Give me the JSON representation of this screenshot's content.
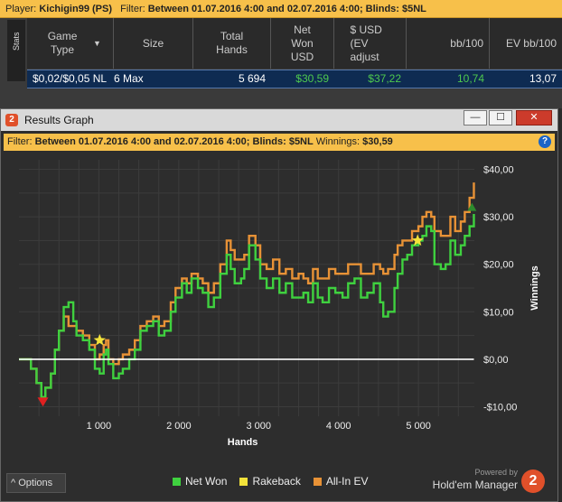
{
  "topbar": {
    "player_label": "Player:",
    "player": "Kichigin99 (PS)",
    "filter_label": "Filter:",
    "filter": "Between 01.07.2016 4:00 and 02.07.2016 4:00; Blinds: $5NL"
  },
  "stats": {
    "tab_label": "Stats",
    "columns": [
      "Game Type",
      "Size",
      "Total Hands",
      "Net Won USD",
      "$ USD (EV adjust",
      "bb/100",
      "EV bb/100"
    ],
    "row": {
      "game_type": "$0,02/$0,05 NL",
      "size": "6 Max",
      "total_hands": "5 694",
      "net_won": "$30,59",
      "ev_adjusted": "$37,22",
      "bb100": "10,74",
      "ev_bb100": "13,07"
    }
  },
  "window": {
    "title": "Results Graph",
    "app_icon": "2",
    "btn_minimize": "—",
    "btn_maximize": "☐",
    "btn_close": "✕"
  },
  "graph_filter": {
    "label": "Filter:",
    "text": "Between 01.07.2016 4:00 and 02.07.2016 4:00; Blinds: $5NL",
    "winnings_label": "Winnings:",
    "winnings": "$30,59",
    "help": "?"
  },
  "chart_data": {
    "type": "line",
    "xlabel": "Hands",
    "ylabel": "Winnings",
    "xlim": [
      0,
      5700
    ],
    "ylim": [
      -12,
      42
    ],
    "x_ticks": [
      1000,
      2000,
      3000,
      4000,
      5000
    ],
    "x_tick_labels": [
      "1 000",
      "2 000",
      "3 000",
      "4 000",
      "5 000"
    ],
    "y_ticks": [
      -10,
      0,
      10,
      20,
      30,
      40
    ],
    "y_tick_labels": [
      "-$10,00",
      "$0,00",
      "$10,00",
      "$20,00",
      "$30,00",
      "$40,00"
    ],
    "grid": true,
    "series": [
      {
        "name": "Net Won",
        "color": "#3fd13f",
        "x": [
          0,
          150,
          220,
          280,
          330,
          400,
          450,
          500,
          560,
          620,
          680,
          720,
          800,
          880,
          950,
          1010,
          1060,
          1090,
          1120,
          1180,
          1250,
          1300,
          1380,
          1450,
          1520,
          1600,
          1680,
          1750,
          1820,
          1900,
          1960,
          2040,
          2100,
          2160,
          2240,
          2300,
          2370,
          2440,
          2520,
          2600,
          2650,
          2700,
          2780,
          2820,
          2880,
          2960,
          3020,
          3100,
          3180,
          3260,
          3340,
          3420,
          3500,
          3560,
          3620,
          3680,
          3740,
          3800,
          3880,
          3960,
          4050,
          4120,
          4200,
          4280,
          4360,
          4440,
          4520,
          4560,
          4620,
          4700,
          4740,
          4800,
          4860,
          4920,
          5000,
          5050,
          5100,
          5160,
          5200,
          5280,
          5340,
          5400,
          5460,
          5530,
          5580,
          5640,
          5694
        ],
        "y": [
          0,
          -2,
          -5,
          -8,
          -6,
          -3,
          2,
          6,
          11,
          12,
          8,
          5,
          4,
          2,
          -2,
          -3,
          1,
          2,
          -1,
          -4,
          -3,
          -2,
          0,
          2,
          6,
          7,
          8,
          5,
          6,
          10,
          13,
          16,
          14,
          17,
          15,
          14,
          11,
          13,
          18,
          22,
          19,
          16,
          17,
          19,
          24,
          21,
          17,
          15,
          17,
          14,
          16,
          13,
          13,
          14,
          12,
          16,
          13,
          12,
          15,
          14,
          13,
          16,
          17,
          13,
          14,
          16,
          12,
          9,
          10,
          15,
          18,
          21,
          22,
          24,
          25,
          26,
          28,
          27,
          20,
          19,
          20,
          25,
          22,
          24,
          26,
          28,
          30.59
        ]
      },
      {
        "name": "All-In EV",
        "color": "#e89236",
        "x": [
          0,
          150,
          220,
          280,
          330,
          400,
          450,
          500,
          560,
          620,
          680,
          720,
          800,
          880,
          950,
          1010,
          1060,
          1090,
          1120,
          1180,
          1250,
          1300,
          1380,
          1450,
          1520,
          1600,
          1680,
          1750,
          1820,
          1900,
          1960,
          2040,
          2100,
          2160,
          2240,
          2300,
          2370,
          2440,
          2520,
          2600,
          2650,
          2700,
          2780,
          2820,
          2880,
          2960,
          3020,
          3100,
          3180,
          3260,
          3340,
          3420,
          3500,
          3560,
          3620,
          3680,
          3740,
          3800,
          3880,
          3960,
          4050,
          4120,
          4200,
          4280,
          4360,
          4440,
          4520,
          4560,
          4620,
          4700,
          4740,
          4800,
          4860,
          4920,
          5000,
          5050,
          5100,
          5160,
          5200,
          5280,
          5340,
          5400,
          5460,
          5530,
          5580,
          5640,
          5694
        ],
        "y": [
          0,
          -2,
          -5,
          -8,
          -6,
          -3,
          2,
          6,
          9,
          7,
          7,
          6,
          5,
          3,
          0,
          1,
          3,
          4,
          0,
          -1,
          0,
          1,
          2,
          4,
          7,
          8,
          9,
          7,
          8,
          12,
          15,
          17,
          16,
          18,
          17,
          16,
          14,
          16,
          20,
          25,
          23,
          21,
          21,
          22,
          26,
          24,
          20,
          19,
          21,
          18,
          19,
          17,
          18,
          17,
          16,
          19,
          17,
          17,
          19,
          18,
          18,
          20,
          20,
          18,
          18,
          20,
          19,
          18,
          19,
          22,
          24,
          25,
          25,
          27,
          28,
          30,
          31,
          30,
          27,
          26,
          26,
          30,
          27,
          29,
          31,
          34,
          37.22
        ]
      },
      {
        "name": "Rakeback",
        "color": "#f2e23a",
        "x": [
          0,
          5694
        ],
        "y": [
          0,
          0
        ]
      }
    ],
    "markers": [
      {
        "type": "star",
        "x": 1010,
        "y": 4,
        "color": "#f2e23a"
      },
      {
        "type": "star",
        "x": 4990,
        "y": 25,
        "color": "#f2e23a"
      },
      {
        "type": "down-triangle",
        "x": 300,
        "y": -9,
        "color": "#e02020"
      },
      {
        "type": "up-triangle",
        "x": 5670,
        "y": 32,
        "color": "#2e8b2e"
      }
    ],
    "zero_line": 0
  },
  "bottom": {
    "options_label": "Options",
    "options_caret": "^",
    "legend": [
      {
        "name": "Net Won",
        "color": "#3fd13f"
      },
      {
        "name": "Rakeback",
        "color": "#f2e23a"
      },
      {
        "name": "All-In EV",
        "color": "#e89236"
      }
    ],
    "powered_by": "Powered by",
    "product": "Hold'em Manager",
    "logo": "2"
  }
}
